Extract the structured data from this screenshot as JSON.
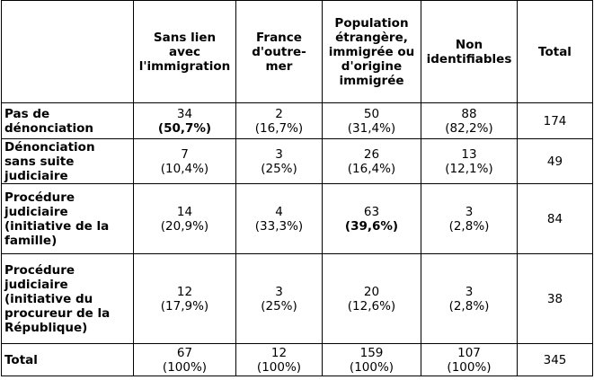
{
  "columns": [
    "",
    "Sans lien avec l'immigration",
    "France d'outre-mer",
    "Population étrangère, immigrée ou d'origine immigrée",
    "Non identifiables",
    "Total"
  ],
  "rows": [
    {
      "label": "Pas de dénonciation",
      "cells": [
        {
          "n": "34",
          "p": "(50,7%)",
          "bold_p": true
        },
        {
          "n": "2",
          "p": "(16,7%)"
        },
        {
          "n": "50",
          "p": "(31,4%)"
        },
        {
          "n": "88",
          "p": "(82,2%)"
        }
      ],
      "total": "174"
    },
    {
      "label": "Dénonciation sans suite judiciaire",
      "cells": [
        {
          "n": "7",
          "p": "(10,4%)"
        },
        {
          "n": "3",
          "p": "(25%)"
        },
        {
          "n": "26",
          "p": "(16,4%)"
        },
        {
          "n": "13",
          "p": "(12,1%)"
        }
      ],
      "total": "49"
    },
    {
      "label": "Procédure judiciaire (initiative de la famille)",
      "cells": [
        {
          "n": "14",
          "p": "(20,9%)"
        },
        {
          "n": "4",
          "p": "(33,3%)"
        },
        {
          "n": "63",
          "p": "(39,6%)",
          "bold_p": true
        },
        {
          "n": "3",
          "p": "(2,8%)"
        }
      ],
      "total": "84"
    },
    {
      "label": "Procédure judiciaire (initiative du procureur de la République)",
      "cells": [
        {
          "n": "12",
          "p": "(17,9%)"
        },
        {
          "n": "3",
          "p": "(25%)"
        },
        {
          "n": "20",
          "p": "(12,6%)"
        },
        {
          "n": "3",
          "p": "(2,8%)"
        }
      ],
      "total": "38"
    },
    {
      "label": "Total",
      "cells": [
        {
          "n": "67",
          "p": "(100%)"
        },
        {
          "n": "12",
          "p": "(100%)"
        },
        {
          "n": "159",
          "p": "(100%)"
        },
        {
          "n": "107",
          "p": "(100%)"
        }
      ],
      "total": "345"
    }
  ]
}
